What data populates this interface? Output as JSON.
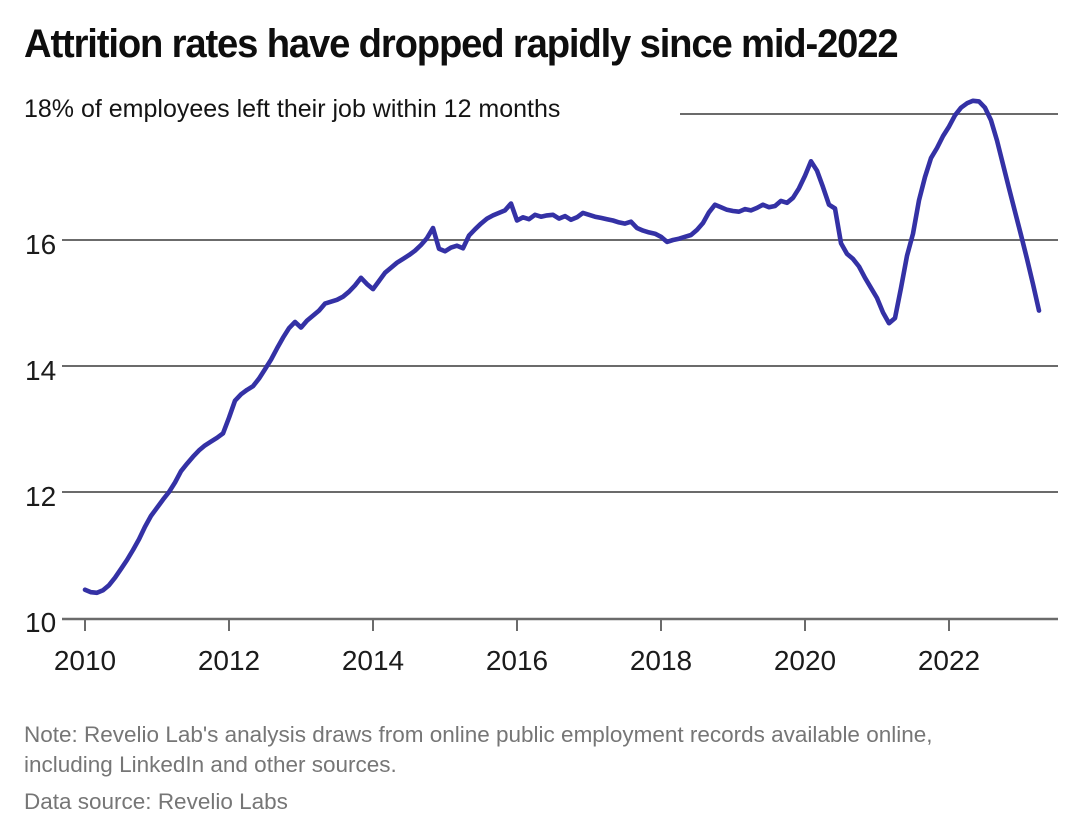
{
  "title": "Attrition rates have dropped rapidly since mid-2022",
  "subtitle": "18% of employees left their job within 12 months",
  "note": "Note: Revelio Lab's analysis draws from online public employment records available online, including LinkedIn and other sources.",
  "source": "Data source: Revelio Labs",
  "colors": {
    "line": "#3431A5",
    "grid": "#6B6B6B",
    "title_text": "#0E0E0E",
    "axis_label": "#1B1B1B",
    "note_text": "#767676",
    "background": "#FFFFFF"
  },
  "chart_data": {
    "type": "line",
    "title": "Attrition rates have dropped rapidly since mid-2022",
    "subtitle": "18% of employees left their job within 12 months",
    "unit": "%",
    "frequency": "monthly",
    "x_start": "2010-01",
    "x_end": "2023-04",
    "x_axis": {
      "ticks": [
        2010,
        2012,
        2014,
        2016,
        2018,
        2020,
        2022
      ]
    },
    "y_axis": {
      "ticks": [
        10,
        12,
        14,
        16
      ],
      "top_gridline": 18,
      "ylim": [
        10,
        18.4
      ],
      "grid": true
    },
    "legend": "none",
    "series": [
      {
        "name": "Share of employees leaving their job within 12 months (%)",
        "values": [
          10.45,
          10.41,
          10.4,
          10.44,
          10.52,
          10.64,
          10.78,
          10.92,
          11.08,
          11.25,
          11.45,
          11.62,
          11.75,
          11.88,
          12.0,
          12.15,
          12.33,
          12.45,
          12.56,
          12.66,
          12.74,
          12.8,
          12.86,
          12.93,
          13.18,
          13.45,
          13.55,
          13.62,
          13.68,
          13.8,
          13.95,
          14.1,
          14.28,
          14.45,
          14.6,
          14.7,
          14.61,
          14.72,
          14.8,
          14.88,
          14.99,
          15.02,
          15.05,
          15.1,
          15.18,
          15.28,
          15.4,
          15.3,
          15.22,
          15.35,
          15.48,
          15.56,
          15.64,
          15.7,
          15.76,
          15.83,
          15.92,
          16.03,
          16.19,
          15.86,
          15.82,
          15.88,
          15.91,
          15.87,
          16.07,
          16.17,
          16.26,
          16.34,
          16.39,
          16.43,
          16.47,
          16.58,
          16.31,
          16.36,
          16.33,
          16.4,
          16.37,
          16.39,
          16.4,
          16.34,
          16.38,
          16.32,
          16.36,
          16.43,
          16.4,
          16.37,
          16.35,
          16.33,
          16.31,
          16.28,
          16.26,
          16.29,
          16.19,
          16.15,
          16.12,
          16.1,
          16.05,
          15.97,
          16.0,
          16.02,
          16.05,
          16.08,
          16.16,
          16.27,
          16.44,
          16.56,
          16.52,
          16.48,
          16.46,
          16.45,
          16.49,
          16.47,
          16.51,
          16.56,
          16.52,
          16.54,
          16.62,
          16.59,
          16.67,
          16.82,
          17.02,
          17.25,
          17.1,
          16.84,
          16.56,
          16.5,
          15.95,
          15.78,
          15.7,
          15.58,
          15.4,
          15.24,
          15.08,
          14.85,
          14.68,
          14.76,
          15.24,
          15.75,
          16.1,
          16.63,
          17.0,
          17.3,
          17.46,
          17.65,
          17.8,
          17.98,
          18.1,
          18.17,
          18.21,
          18.2,
          18.1,
          17.9,
          17.58,
          17.2,
          16.82,
          16.45,
          16.08,
          15.7,
          15.3,
          14.88
        ]
      }
    ]
  }
}
